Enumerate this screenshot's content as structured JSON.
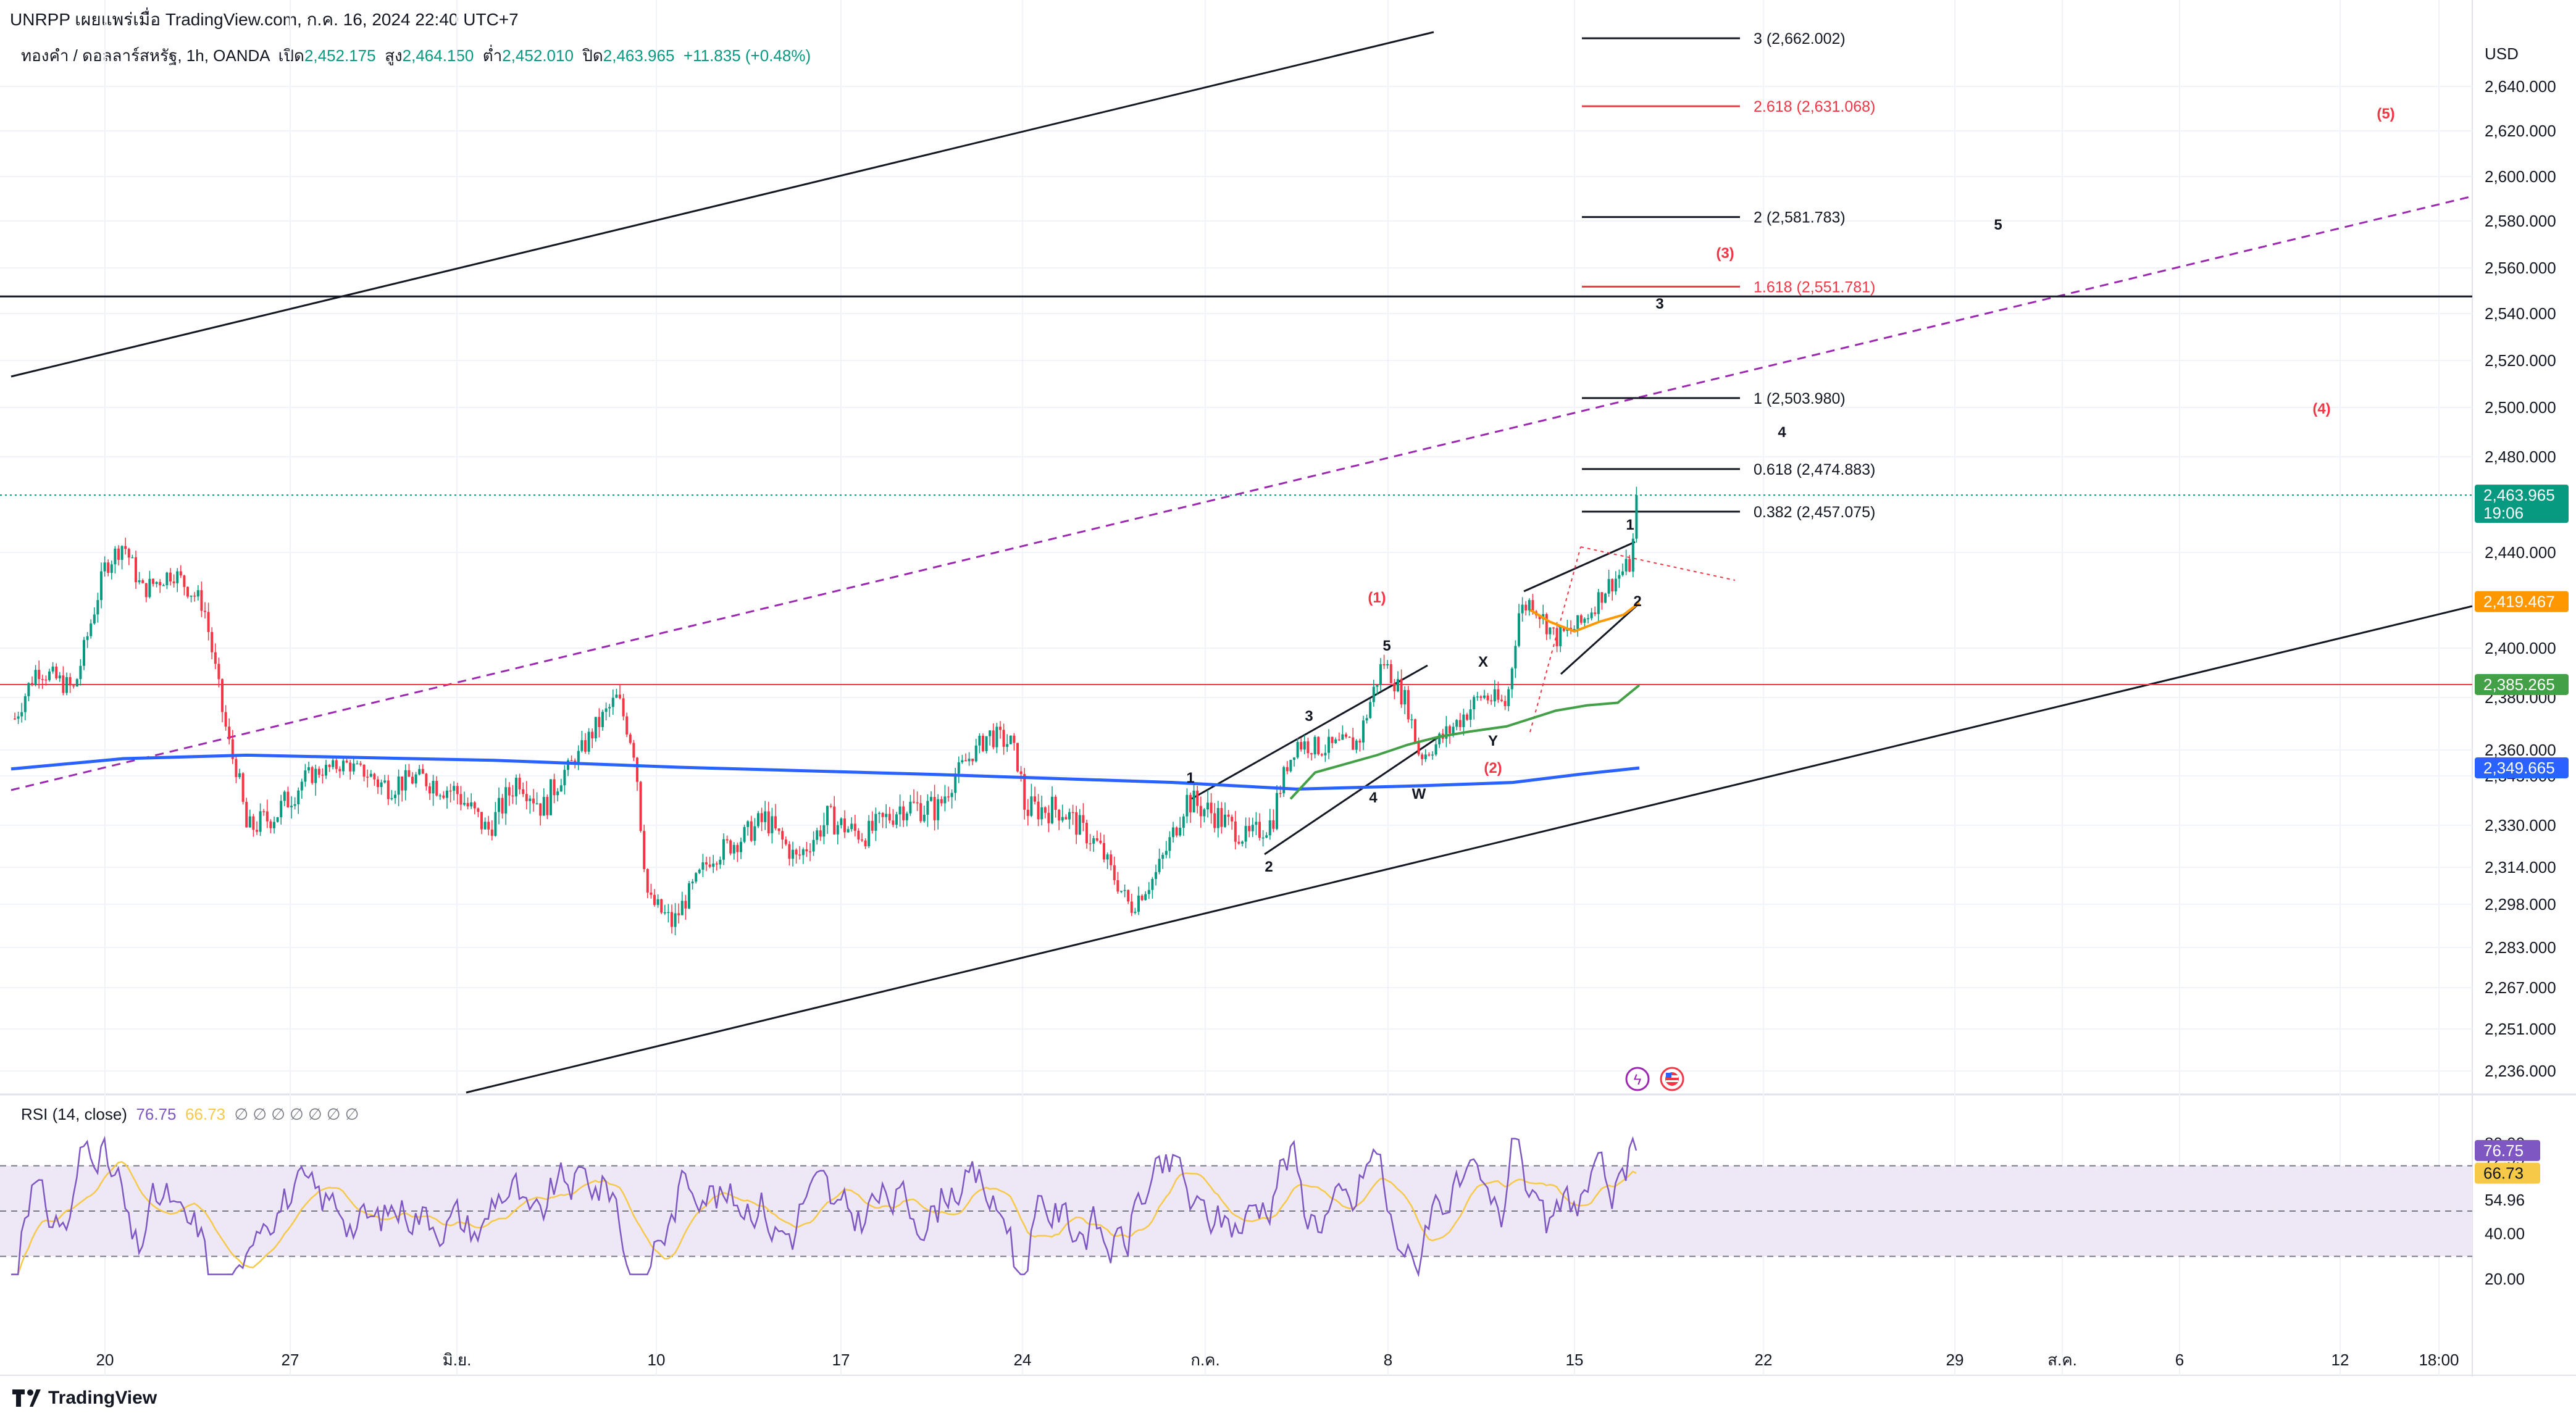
{
  "header": {
    "publisher": "UNRPP เผยแพร่เมื่อ TradingView.com, ก.ค. 16, 2024 22:40 UTC+7"
  },
  "symbol_line": {
    "name": "ทองคำ / ดอลลาร์สหรัฐ, 1h, OANDA",
    "open_label": "เปิด",
    "open": "2,452.175",
    "high_label": "สูง",
    "high": "2,464.150",
    "low_label": "ต่ำ",
    "low": "2,452.010",
    "close_label": "ปิด",
    "close": "2,463.965",
    "change": "+11.835 (+0.48%)"
  },
  "rsi_header": {
    "label": "RSI (14, close)",
    "value": "76.75",
    "ma": "66.73",
    "empties": "∅ ∅ ∅ ∅ ∅ ∅ ∅"
  },
  "footer": {
    "brand": "TradingView"
  },
  "colors": {
    "up": "#089981",
    "down": "#f23645",
    "ema_blue": "#2962ff",
    "green_ma": "#43a047",
    "orange_ma": "#ff9800",
    "fib_red": "#f23645",
    "rsi_line": "#7e57c2",
    "rsi_ma": "#f7c948",
    "rsi_band": "#ede7f6"
  },
  "chart_data": {
    "type": "candlestick",
    "timeframe": "1h",
    "currency": "USD",
    "price_axis_ticks": [
      "2,640.000",
      "2,620.000",
      "2,600.000",
      "2,580.000",
      "2,560.000",
      "2,540.000",
      "2,520.000",
      "2,500.000",
      "2,480.000",
      "2,440.000",
      "2,400.000",
      "2,380.000",
      "2,360.000",
      "2,345.000",
      "2,330.000",
      "2,314.000",
      "2,298.000",
      "2,283.000",
      "2,267.000",
      "2,251.000",
      "2,236.000"
    ],
    "price_axis_values": [
      2640,
      2620,
      2600,
      2580,
      2560,
      2540,
      2520,
      2500,
      2480,
      2440,
      2400,
      2380,
      2360,
      2345,
      2330,
      2314,
      2298,
      2283,
      2267,
      2251,
      2236
    ],
    "time_axis_labels": [
      "20",
      "27",
      "มิ.ย.",
      "10",
      "17",
      "24",
      "ก.ค.",
      "8",
      "15",
      "22",
      "29",
      "ส.ค.",
      "6",
      "12",
      "18:00"
    ],
    "price_badges": [
      {
        "label": "2,463.965",
        "sub": "19:06",
        "value": 2463.965,
        "color": "#089981"
      },
      {
        "label": "2,419.467",
        "value": 2419.467,
        "color": "#ff9800"
      },
      {
        "label": "2,385.265",
        "value": 2385.265,
        "color": "#43a047"
      },
      {
        "label": "2,349.665",
        "value": 2349.665,
        "color": "#2962ff"
      }
    ],
    "fib_levels": [
      {
        "label": "3 (2,662.002)",
        "value": 2662.002,
        "color": "#131722"
      },
      {
        "label": "2.618 (2,631.068)",
        "value": 2631.068,
        "color": "#f23645"
      },
      {
        "label": "2 (2,581.783)",
        "value": 2581.783,
        "color": "#131722"
      },
      {
        "label": "1.618 (2,551.781)",
        "value": 2551.781,
        "color": "#f23645"
      },
      {
        "label": "1 (2,503.980)",
        "value": 2503.98,
        "color": "#131722"
      },
      {
        "label": "0.618 (2,474.883)",
        "value": 2474.883,
        "color": "#131722"
      },
      {
        "label": "0.382 (2,457.075)",
        "value": 2457.075,
        "color": "#131722"
      }
    ],
    "horizontal_lines": [
      {
        "value": 2547.5,
        "color": "#131722"
      },
      {
        "value": 2385.265,
        "color": "#f23645"
      }
    ],
    "wave_labels_black": [
      "1",
      "2",
      "3",
      "4",
      "5",
      "X",
      "Y",
      "W",
      "3",
      "4",
      "5",
      "1",
      "2"
    ],
    "wave_labels_red": [
      "(1)",
      "(2)",
      "(3)",
      "(4)",
      "(5)"
    ],
    "rsi": {
      "ticks": [
        "80.00",
        "72.99",
        "54.96",
        "40.00",
        "20.00"
      ],
      "tick_values": [
        80,
        72.99,
        54.96,
        40,
        20
      ],
      "value_badge": "76.75",
      "ma_badge": "66.73",
      "value": 76.75,
      "ma_value": 66.73,
      "upper_band": 70,
      "mid_band": 50,
      "lower_band": 30
    }
  }
}
